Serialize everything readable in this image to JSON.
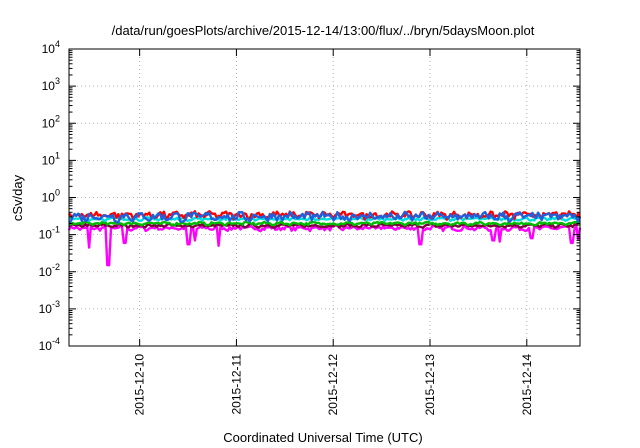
{
  "chart_data": {
    "type": "line",
    "title": "/data/run/goesPlots/archive/2015-12-14/13:00/flux/../bryn/5daysMoon.plot",
    "xlabel": "Coordinated Universal Time (UTC)",
    "ylabel": "cSv/day",
    "yscale": "log",
    "ylim": [
      0.0001,
      10000
    ],
    "xlim": [
      9.27,
      14.55
    ],
    "grid": true,
    "x_tick_labels": [
      "2015-12-10",
      "2015-12-11",
      "2015-12-12",
      "2015-12-13",
      "2015-12-14"
    ],
    "x_ticks": [
      10,
      11,
      12,
      13,
      14
    ],
    "y_ticks": [
      {
        "value": 0.0001,
        "base": "10",
        "exp": "-4"
      },
      {
        "value": 0.001,
        "base": "10",
        "exp": "-3"
      },
      {
        "value": 0.01,
        "base": "10",
        "exp": "-2"
      },
      {
        "value": 0.1,
        "base": "10",
        "exp": "-1"
      },
      {
        "value": 1,
        "base": "10",
        "exp": "0"
      },
      {
        "value": 10,
        "base": "10",
        "exp": "1"
      },
      {
        "value": 100,
        "base": "10",
        "exp": "2"
      },
      {
        "value": 1000,
        "base": "10",
        "exp": "3"
      },
      {
        "value": 10000,
        "base": "10",
        "exp": "4"
      }
    ],
    "series": [
      {
        "color": "#ff00ff",
        "base": 0.15,
        "amp": 0.018,
        "dips": [
          {
            "x": 9.48,
            "v": 0.045
          },
          {
            "x": 9.67,
            "v": 0.015
          },
          {
            "x": 9.85,
            "v": 0.06
          },
          {
            "x": 10.5,
            "v": 0.055
          },
          {
            "x": 10.57,
            "v": 0.07
          },
          {
            "x": 10.82,
            "v": 0.05
          },
          {
            "x": 12.9,
            "v": 0.055
          },
          {
            "x": 13.65,
            "v": 0.07
          },
          {
            "x": 13.72,
            "v": 0.065
          },
          {
            "x": 14.05,
            "v": 0.08
          },
          {
            "x": 14.47,
            "v": 0.06
          },
          {
            "x": 14.53,
            "v": 0.075
          }
        ]
      },
      {
        "color": "#800040",
        "base": 0.175,
        "amp": 0.015,
        "dips": []
      },
      {
        "color": "#00bb00",
        "base": 0.2,
        "amp": 0.015,
        "dips": []
      },
      {
        "color": "#00dddd",
        "base": 0.265,
        "amp": 0.02,
        "dips": []
      },
      {
        "color": "#ff0000",
        "base": 0.34,
        "amp": 0.06,
        "dips": []
      },
      {
        "color": "#2060dd",
        "base": 0.31,
        "amp": 0.07,
        "dips": []
      }
    ]
  }
}
